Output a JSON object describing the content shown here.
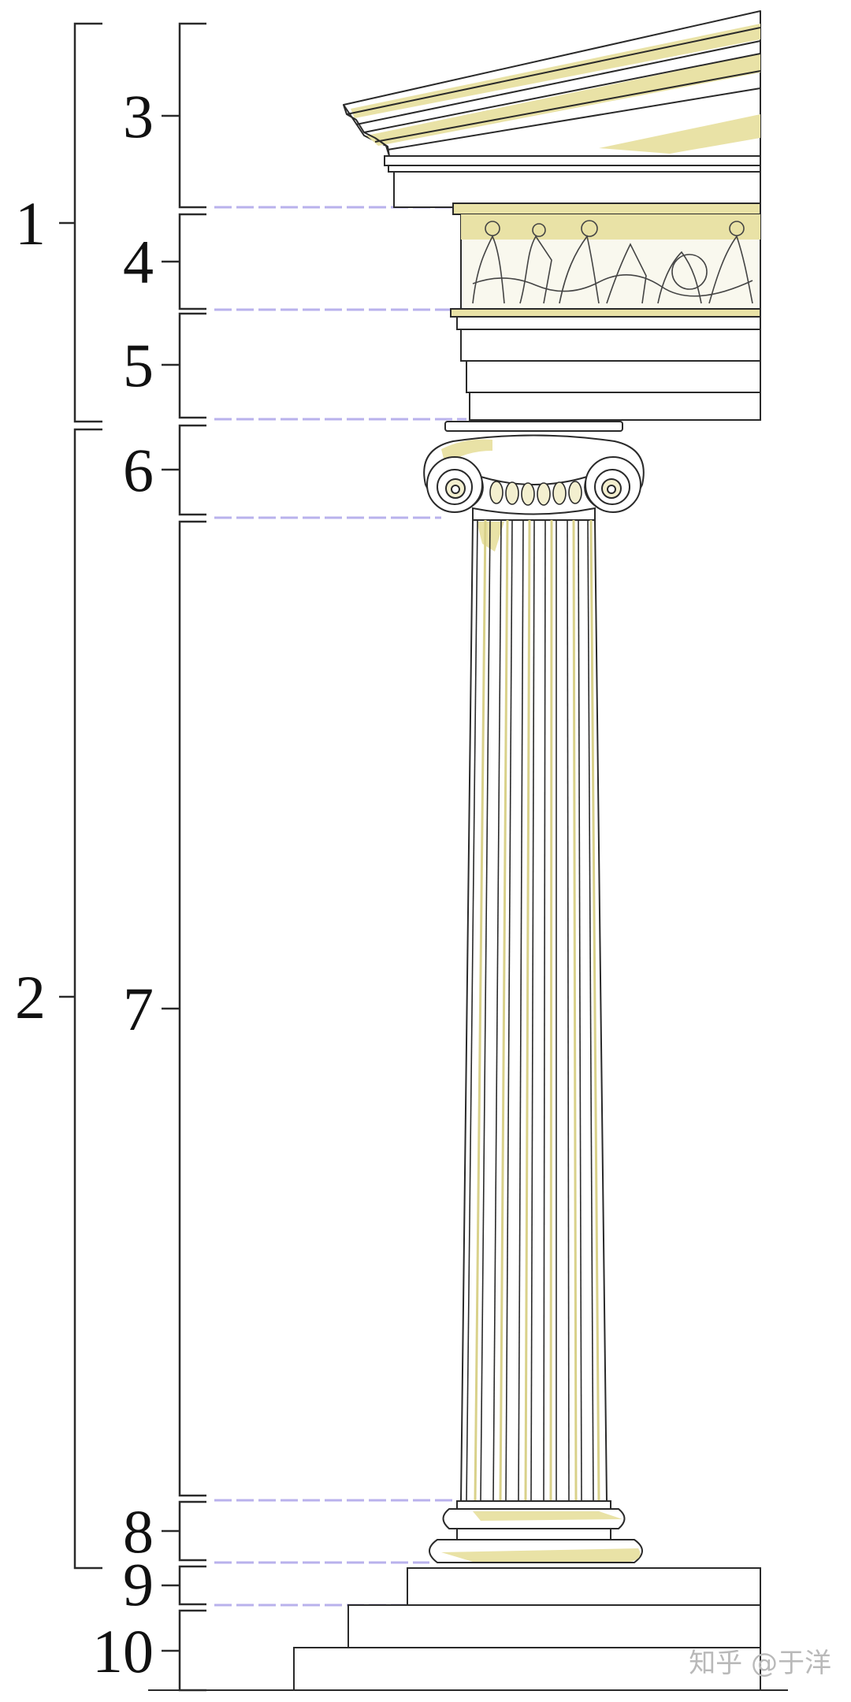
{
  "diagram": {
    "labels": {
      "n1": "1",
      "n2": "2",
      "n3": "3",
      "n4": "4",
      "n5": "5",
      "n6": "6",
      "n7": "7",
      "n8": "8",
      "n9": "9",
      "n10": "10"
    },
    "watermark": "知乎 @于洋",
    "colors": {
      "line": "#2a2a2a",
      "highlight": "#e9e2a6",
      "guide": "#b9b2ec"
    }
  }
}
